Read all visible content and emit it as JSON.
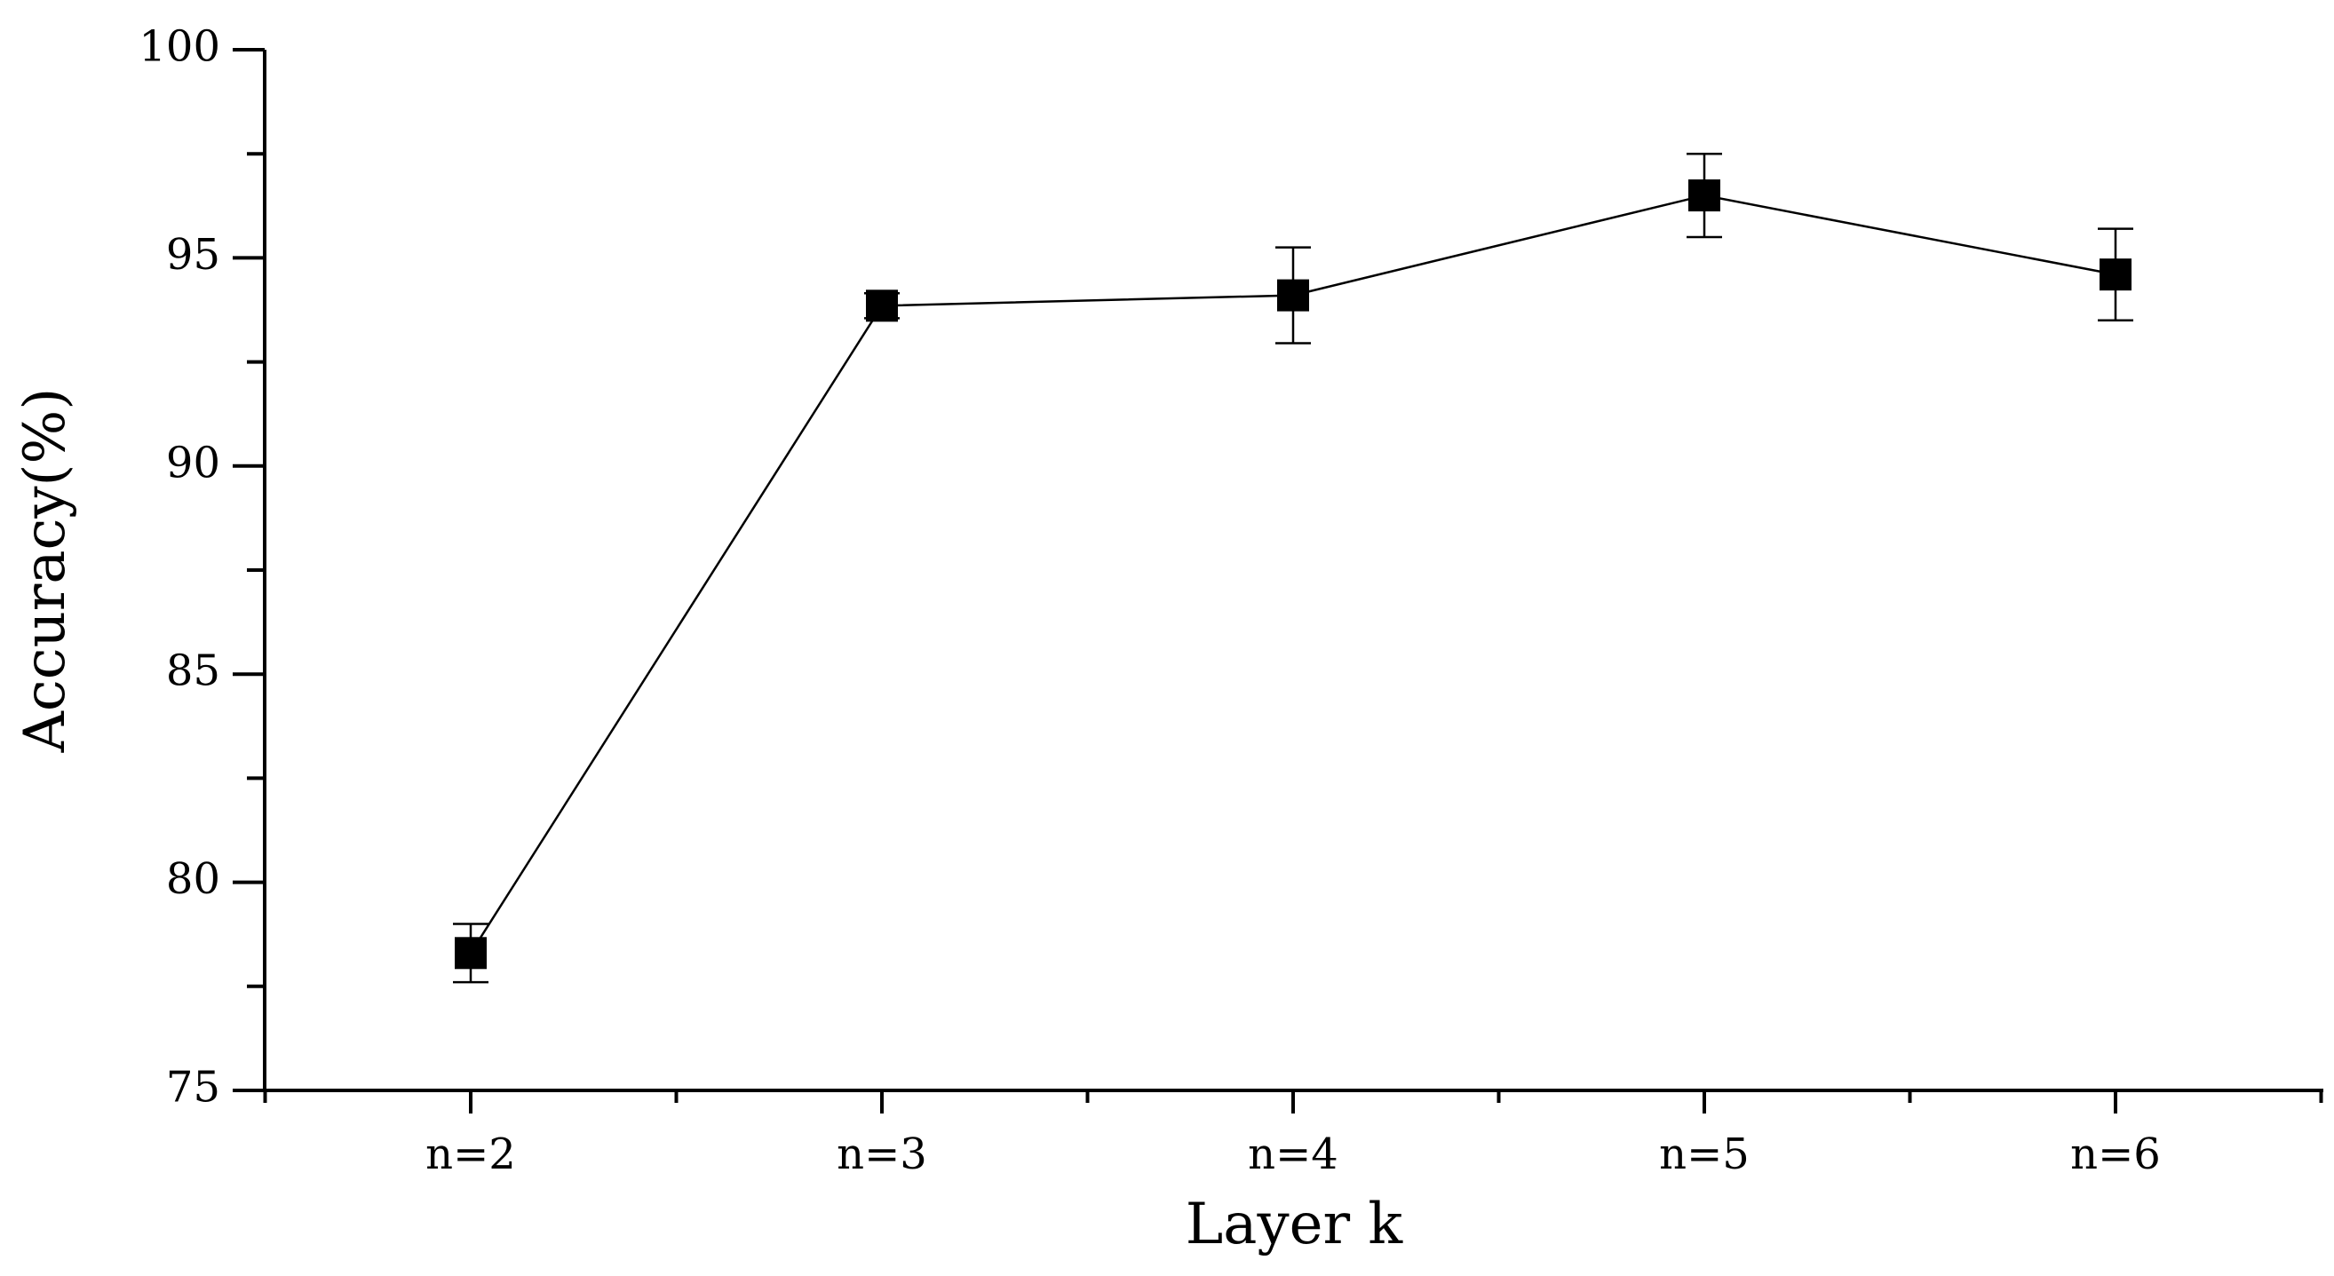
{
  "chart_data": {
    "type": "line",
    "categories": [
      "n=2",
      "n=3",
      "n=4",
      "n=5",
      "n=6"
    ],
    "values": [
      78.3,
      93.85,
      94.1,
      96.5,
      94.6
    ],
    "error": [
      0.7,
      0.3,
      1.15,
      1.0,
      1.1
    ],
    "xlabel": "Layer k",
    "ylabel": "Accuracy(%)",
    "ylim": [
      75,
      100
    ],
    "yticks": [
      75,
      80,
      85,
      90,
      95,
      100
    ],
    "marker": "square",
    "color": "#000000",
    "grid": false
  }
}
